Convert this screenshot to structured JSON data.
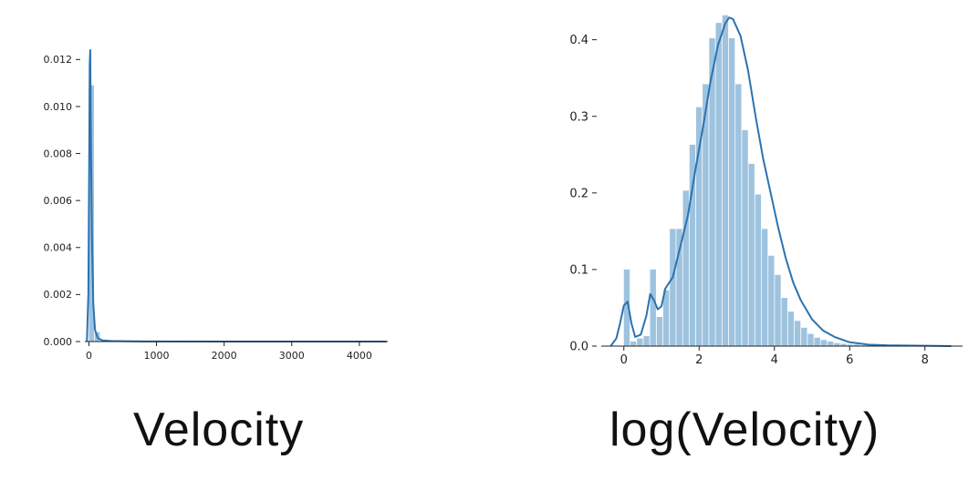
{
  "chart_data": [
    {
      "type": "histogram",
      "title": "",
      "xlabel": "Velocity",
      "ylabel": "",
      "xlim": [
        -60,
        4420
      ],
      "ylim": [
        0,
        0.0124
      ],
      "xticks": [
        0,
        1000,
        2000,
        3000,
        4000
      ],
      "xtick_labels": [
        "0",
        "1000",
        "2000",
        "3000",
        "4000"
      ],
      "yticks": [
        0,
        0.002,
        0.004,
        0.006,
        0.008,
        0.01,
        0.012
      ],
      "ytick_labels": [
        "0.000",
        "0.002",
        "0.004",
        "0.006",
        "0.008",
        "0.010",
        "0.012"
      ],
      "grid": false,
      "bar_color": "#9ec3df",
      "line_color": "#2b73b0",
      "bins": [
        {
          "x0": 0,
          "x1": 86,
          "density": 0.0109
        },
        {
          "x0": 86,
          "x1": 172,
          "density": 0.0004
        },
        {
          "x0": 172,
          "x1": 258,
          "density": 6e-05
        },
        {
          "x0": 258,
          "x1": 344,
          "density": 3e-05
        }
      ],
      "kde": {
        "x": [
          -30,
          -8,
          5,
          12,
          20,
          30,
          45,
          65,
          90,
          130,
          200,
          350,
          800,
          2000,
          4400
        ],
        "y": [
          0,
          0.002,
          0.008,
          0.0118,
          0.0124,
          0.0085,
          0.0045,
          0.0016,
          0.0005,
          0.00015,
          5e-05,
          2e-05,
          5e-06,
          2e-06,
          0
        ]
      }
    },
    {
      "type": "histogram",
      "title": "",
      "xlabel": "log(Velocity)",
      "ylabel": "",
      "xlim": [
        -0.6,
        9.0
      ],
      "ylim": [
        0,
        0.44
      ],
      "xticks": [
        0,
        2,
        4,
        6,
        8
      ],
      "xtick_labels": [
        "0",
        "2",
        "4",
        "6",
        "8"
      ],
      "yticks": [
        0.0,
        0.1,
        0.2,
        0.3,
        0.4
      ],
      "ytick_labels": [
        "0.0",
        "0.1",
        "0.2",
        "0.3",
        "0.4"
      ],
      "grid": false,
      "bar_color": "#9ec3df",
      "line_color": "#2b73b0",
      "bin_start": 0,
      "bin_width": 0.1745,
      "densities": [
        0.1,
        0.006,
        0.01,
        0.013,
        0.1,
        0.038,
        0.073,
        0.153,
        0.153,
        0.203,
        0.263,
        0.312,
        0.342,
        0.402,
        0.422,
        0.432,
        0.402,
        0.342,
        0.282,
        0.238,
        0.198,
        0.153,
        0.118,
        0.093,
        0.063,
        0.045,
        0.033,
        0.024,
        0.016,
        0.011,
        0.008,
        0.006,
        0.004,
        0.003,
        0.002,
        0.002,
        0.001,
        0.001,
        0.001,
        0.001,
        0.001,
        0.0005,
        0.0005,
        0.0005,
        0.0005,
        0.0005,
        0.0005,
        0.0005,
        0.0005,
        0.0005
      ],
      "kde": {
        "x": [
          -0.35,
          -0.2,
          -0.1,
          0.0,
          0.1,
          0.2,
          0.3,
          0.45,
          0.6,
          0.7,
          0.8,
          0.9,
          1.0,
          1.1,
          1.3,
          1.5,
          1.7,
          1.9,
          2.1,
          2.3,
          2.5,
          2.7,
          2.8,
          2.9,
          3.1,
          3.3,
          3.5,
          3.7,
          3.9,
          4.1,
          4.3,
          4.5,
          4.7,
          5.0,
          5.3,
          5.6,
          6.0,
          6.5,
          7.0,
          8.0,
          8.7
        ],
        "y": [
          0,
          0.01,
          0.03,
          0.053,
          0.058,
          0.03,
          0.012,
          0.015,
          0.04,
          0.068,
          0.06,
          0.048,
          0.052,
          0.075,
          0.09,
          0.13,
          0.17,
          0.23,
          0.285,
          0.345,
          0.393,
          0.422,
          0.429,
          0.427,
          0.405,
          0.36,
          0.3,
          0.245,
          0.2,
          0.155,
          0.115,
          0.083,
          0.06,
          0.035,
          0.02,
          0.012,
          0.005,
          0.002,
          0.001,
          0.0005,
          0
        ]
      }
    }
  ]
}
